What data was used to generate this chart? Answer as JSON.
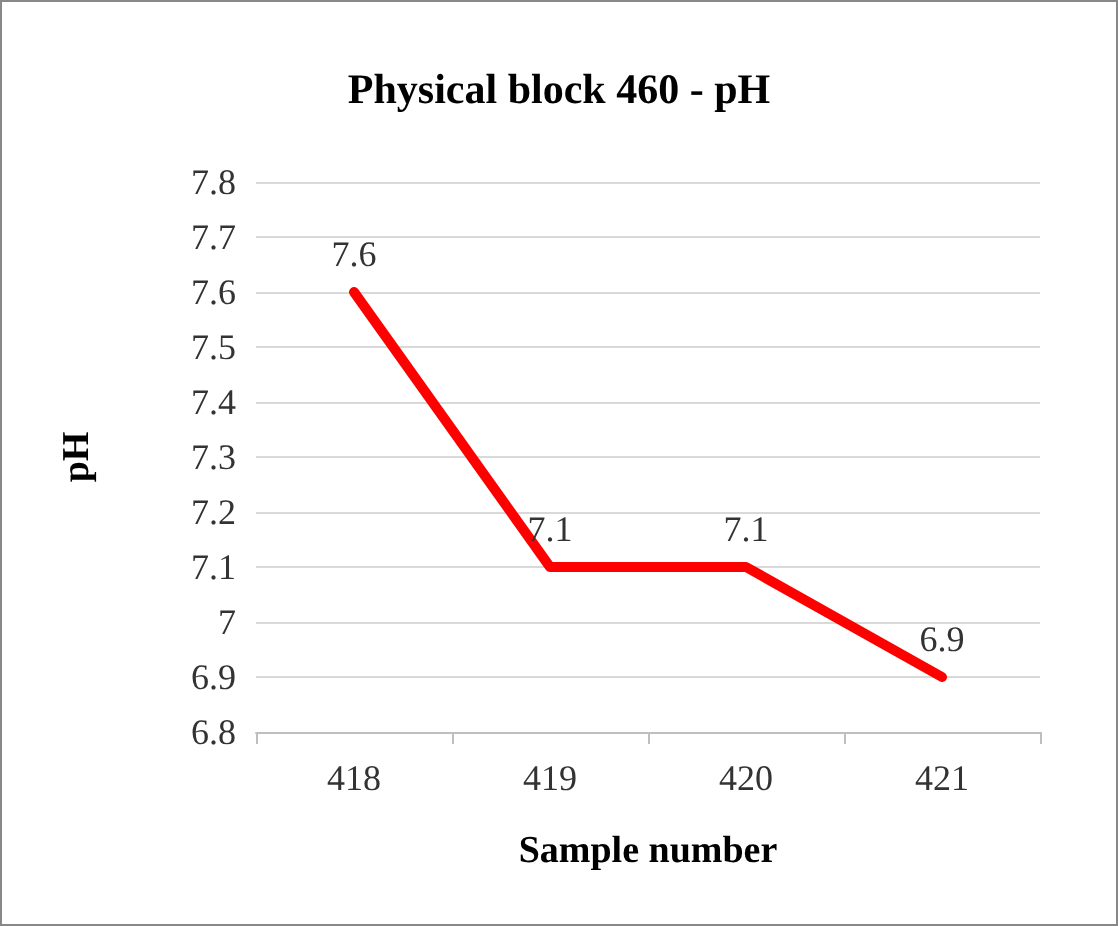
{
  "chart_data": {
    "type": "line",
    "title": "Physical block 460 - pH",
    "xlabel": "Sample number",
    "ylabel": "pH",
    "categories": [
      "418",
      "419",
      "420",
      "421"
    ],
    "series": [
      {
        "color": "#ff0000",
        "values": [
          7.6,
          7.1,
          7.1,
          6.9
        ]
      }
    ],
    "ylim": [
      6.8,
      7.8
    ],
    "yticks": [
      6.8,
      6.9,
      7,
      7.1,
      7.2,
      7.3,
      7.4,
      7.5,
      7.6,
      7.7,
      7.8
    ],
    "grid": "y",
    "data_labels": true,
    "marker": "none",
    "line_style": "solid"
  }
}
